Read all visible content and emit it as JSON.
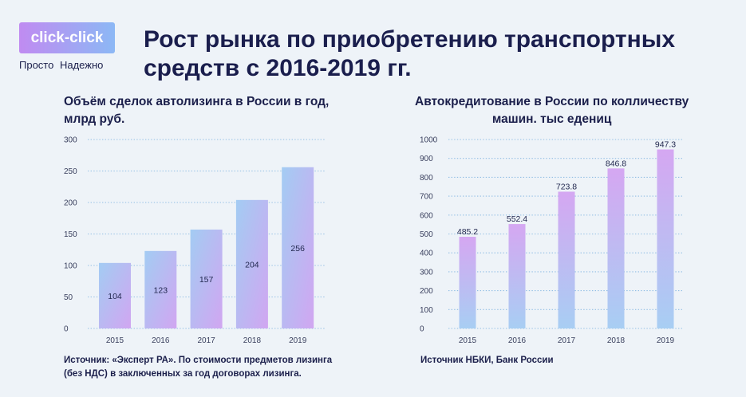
{
  "logo": {
    "text": "click-click",
    "tagline": "Просто Надежно"
  },
  "title_lines": [
    "Рост рынка по приобретению транспортных",
    "средств с 2016-2019 гг."
  ],
  "colors": {
    "background": "#eef3f8",
    "title": "#1a1e4d",
    "logo_gradient": [
      "#c08bf1",
      "#8cb8f5"
    ],
    "gridline": "#93bfe4"
  },
  "chart_data": [
    {
      "type": "bar",
      "title_lines": [
        "Объём сделок автолизинга в России в год,",
        "млрд руб."
      ],
      "categories": [
        "2015",
        "2016",
        "2017",
        "2018",
        "2019"
      ],
      "values": [
        104,
        123,
        157,
        204,
        256
      ],
      "ylim": [
        0,
        300
      ],
      "yticks": [
        0,
        50,
        100,
        150,
        200,
        250,
        300
      ],
      "grid": true,
      "bar_gradient": [
        "#a3ccf3",
        "#d1a6f1"
      ],
      "source_lines": [
        "Источник: «Эксперт РА». По стоимости предметов лизинга",
        "(без НДС) в заключенных за год договорах лизинга."
      ]
    },
    {
      "type": "bar",
      "title_lines": [
        "Автокредитование в России по колличеству",
        "машин. тыс едениц"
      ],
      "categories": [
        "2015",
        "2016",
        "2017",
        "2018",
        "2019"
      ],
      "values": [
        485.2,
        552.4,
        723.8,
        846.8,
        947.3
      ],
      "ylim": [
        0,
        1000
      ],
      "yticks": [
        0,
        100,
        200,
        300,
        400,
        500,
        600,
        700,
        800,
        900,
        1000
      ],
      "grid": true,
      "bar_gradient": [
        "#d5a7f2",
        "#a8cef3"
      ],
      "source_lines": [
        "Источник НБКИ, Банк России"
      ]
    }
  ]
}
